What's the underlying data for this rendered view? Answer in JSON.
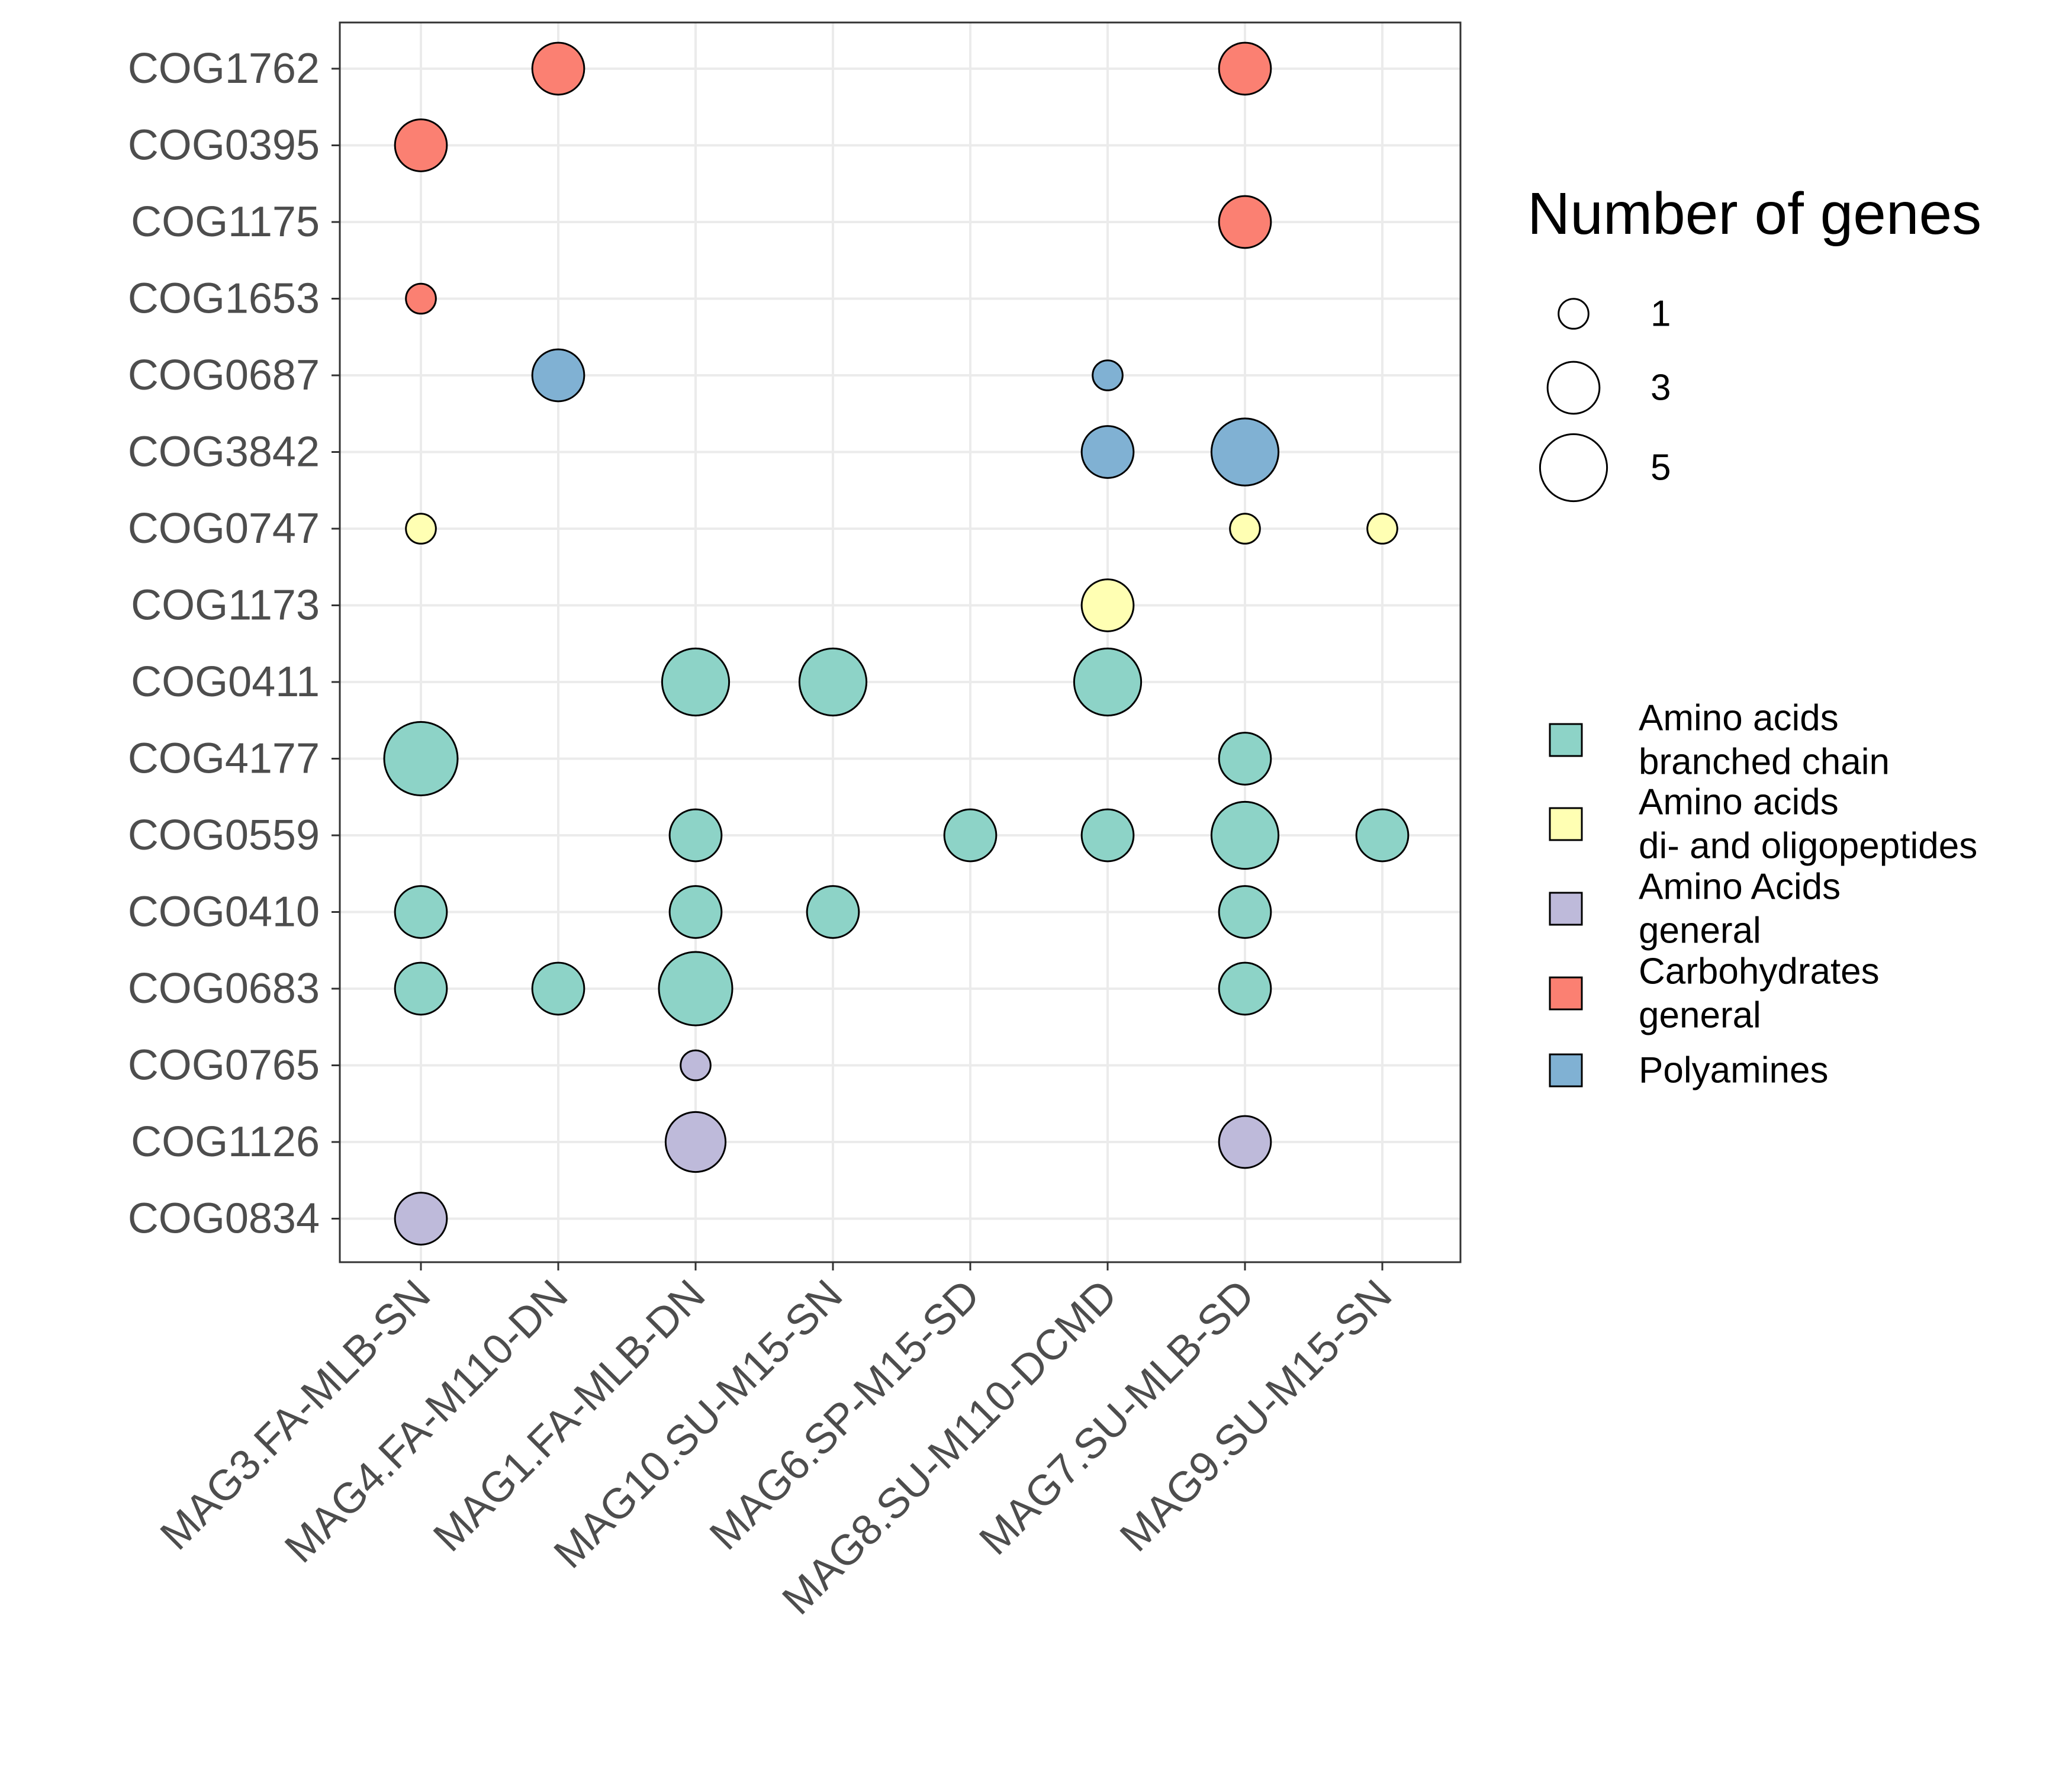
{
  "chart_data": {
    "type": "scatter",
    "subtype": "bubble",
    "title": "",
    "xlabel": "",
    "ylabel": "",
    "x_categories": [
      "MAG3.FA-MLB-SN",
      "MAG4.FA-M110-DN",
      "MAG1.FA-MLB-DN",
      "MAG10.SU-M15-SN",
      "MAG6.SP-M15-SD",
      "MAG8.SU-M110-DCMD",
      "MAG7.SU-MLB-SD",
      "MAG9.SU-M15-SN"
    ],
    "y_categories": [
      "COG1762",
      "COG0395",
      "COG1175",
      "COG1653",
      "COG0687",
      "COG3842",
      "COG0747",
      "COG1173",
      "COG0411",
      "COG4177",
      "COG0559",
      "COG0410",
      "COG0683",
      "COG0765",
      "COG1126",
      "COG0834"
    ],
    "grid": true,
    "size_legend": {
      "title": "Number of genes",
      "values": [
        1,
        3,
        5
      ],
      "labels": [
        "1",
        "3",
        "5"
      ],
      "max_value": 6
    },
    "color_legend": {
      "items": [
        {
          "key": "aa_branched",
          "label_lines": [
            "Amino acids",
            "branched chain"
          ],
          "color": "#8dd3c7"
        },
        {
          "key": "aa_peptides",
          "label_lines": [
            "Amino acids",
            "di- and oligopeptides"
          ],
          "color": "#ffffb3"
        },
        {
          "key": "aa_general",
          "label_lines": [
            "Amino Acids",
            "general"
          ],
          "color": "#bebada"
        },
        {
          "key": "carb_general",
          "label_lines": [
            "Carbohydrates",
            "general"
          ],
          "color": "#fb8072"
        },
        {
          "key": "polyamines",
          "label_lines": [
            "Polyamines"
          ],
          "color": "#80b1d3"
        }
      ]
    },
    "points": [
      {
        "x": "MAG4.FA-M110-DN",
        "y": "COG1762",
        "size": 3,
        "category": "carb_general"
      },
      {
        "x": "MAG7.SU-MLB-SD",
        "y": "COG1762",
        "size": 3,
        "category": "carb_general"
      },
      {
        "x": "MAG3.FA-MLB-SN",
        "y": "COG0395",
        "size": 3,
        "category": "carb_general"
      },
      {
        "x": "MAG7.SU-MLB-SD",
        "y": "COG1175",
        "size": 3,
        "category": "carb_general"
      },
      {
        "x": "MAG3.FA-MLB-SN",
        "y": "COG1653",
        "size": 1,
        "category": "carb_general"
      },
      {
        "x": "MAG4.FA-M110-DN",
        "y": "COG0687",
        "size": 3,
        "category": "polyamines"
      },
      {
        "x": "MAG8.SU-M110-DCMD",
        "y": "COG0687",
        "size": 1,
        "category": "polyamines"
      },
      {
        "x": "MAG8.SU-M110-DCMD",
        "y": "COG3842",
        "size": 3,
        "category": "polyamines"
      },
      {
        "x": "MAG7.SU-MLB-SD",
        "y": "COG3842",
        "size": 5,
        "category": "polyamines"
      },
      {
        "x": "MAG3.FA-MLB-SN",
        "y": "COG0747",
        "size": 1,
        "category": "aa_peptides"
      },
      {
        "x": "MAG7.SU-MLB-SD",
        "y": "COG0747",
        "size": 1,
        "category": "aa_peptides"
      },
      {
        "x": "MAG9.SU-M15-SN",
        "y": "COG0747",
        "size": 1,
        "category": "aa_peptides"
      },
      {
        "x": "MAG8.SU-M110-DCMD",
        "y": "COG1173",
        "size": 3,
        "category": "aa_peptides"
      },
      {
        "x": "MAG1.FA-MLB-DN",
        "y": "COG0411",
        "size": 5,
        "category": "aa_branched"
      },
      {
        "x": "MAG10.SU-M15-SN",
        "y": "COG0411",
        "size": 5,
        "category": "aa_branched"
      },
      {
        "x": "MAG8.SU-M110-DCMD",
        "y": "COG0411",
        "size": 5,
        "category": "aa_branched"
      },
      {
        "x": "MAG3.FA-MLB-SN",
        "y": "COG4177",
        "size": 6,
        "category": "aa_branched"
      },
      {
        "x": "MAG7.SU-MLB-SD",
        "y": "COG4177",
        "size": 3,
        "category": "aa_branched"
      },
      {
        "x": "MAG1.FA-MLB-DN",
        "y": "COG0559",
        "size": 3,
        "category": "aa_branched"
      },
      {
        "x": "MAG6.SP-M15-SD",
        "y": "COG0559",
        "size": 3,
        "category": "aa_branched"
      },
      {
        "x": "MAG8.SU-M110-DCMD",
        "y": "COG0559",
        "size": 3,
        "category": "aa_branched"
      },
      {
        "x": "MAG7.SU-MLB-SD",
        "y": "COG0559",
        "size": 5,
        "category": "aa_branched"
      },
      {
        "x": "MAG9.SU-M15-SN",
        "y": "COG0559",
        "size": 3,
        "category": "aa_branched"
      },
      {
        "x": "MAG3.FA-MLB-SN",
        "y": "COG0410",
        "size": 3,
        "category": "aa_branched"
      },
      {
        "x": "MAG1.FA-MLB-DN",
        "y": "COG0410",
        "size": 3,
        "category": "aa_branched"
      },
      {
        "x": "MAG10.SU-M15-SN",
        "y": "COG0410",
        "size": 3,
        "category": "aa_branched"
      },
      {
        "x": "MAG7.SU-MLB-SD",
        "y": "COG0410",
        "size": 3,
        "category": "aa_branched"
      },
      {
        "x": "MAG3.FA-MLB-SN",
        "y": "COG0683",
        "size": 3,
        "category": "aa_branched"
      },
      {
        "x": "MAG4.FA-M110-DN",
        "y": "COG0683",
        "size": 3,
        "category": "aa_branched"
      },
      {
        "x": "MAG1.FA-MLB-DN",
        "y": "COG0683",
        "size": 6,
        "category": "aa_branched"
      },
      {
        "x": "MAG7.SU-MLB-SD",
        "y": "COG0683",
        "size": 3,
        "category": "aa_branched"
      },
      {
        "x": "MAG1.FA-MLB-DN",
        "y": "COG0765",
        "size": 1,
        "category": "aa_general"
      },
      {
        "x": "MAG1.FA-MLB-DN",
        "y": "COG1126",
        "size": 4,
        "category": "aa_general"
      },
      {
        "x": "MAG7.SU-MLB-SD",
        "y": "COG1126",
        "size": 3,
        "category": "aa_general"
      },
      {
        "x": "MAG3.FA-MLB-SN",
        "y": "COG0834",
        "size": 3,
        "category": "aa_general"
      }
    ]
  }
}
